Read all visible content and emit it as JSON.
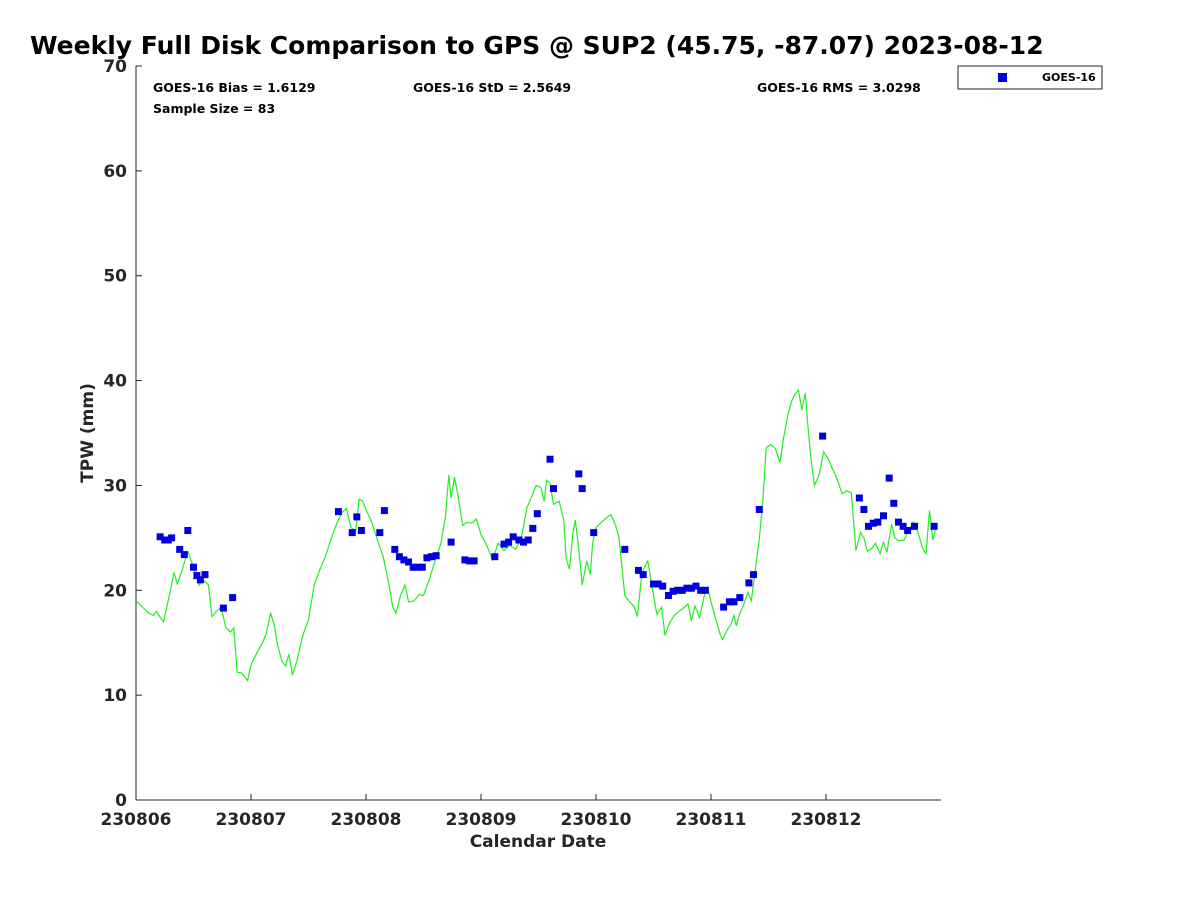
{
  "chart_data": {
    "type": "scatter",
    "title": "Weekly Full Disk Comparison to GPS @ SUP2 (45.75, -87.07) 2023-08-12",
    "xlabel": "Calendar Date",
    "ylabel": "TPW (mm)",
    "xlim": [
      230806,
      230813
    ],
    "ylim": [
      0,
      70
    ],
    "x_ticks": [
      "230806",
      "230807",
      "230808",
      "230809",
      "230810",
      "230811",
      "230812"
    ],
    "y_ticks": [
      "0",
      "10",
      "20",
      "30",
      "40",
      "50",
      "60",
      "70"
    ],
    "grid": false,
    "legend_position": "top-right outside plot",
    "stats": {
      "bias": "GOES-16 Bias = 1.6129",
      "std": "GOES-16 StD = 2.5649",
      "rms": "GOES-16 RMS = 3.0298",
      "sample": "Sample Size = 83"
    },
    "series": [
      {
        "name": "GOES-16",
        "kind": "markers",
        "color": "#0000dd",
        "points": [
          [
            230806.21,
            25.1
          ],
          [
            230806.25,
            24.8
          ],
          [
            230806.28,
            24.8
          ],
          [
            230806.31,
            25.0
          ],
          [
            230806.38,
            23.9
          ],
          [
            230806.42,
            23.4
          ],
          [
            230806.45,
            25.7
          ],
          [
            230806.5,
            22.2
          ],
          [
            230806.53,
            21.4
          ],
          [
            230806.56,
            21.0
          ],
          [
            230806.6,
            21.5
          ],
          [
            230806.76,
            18.3
          ],
          [
            230806.84,
            19.3
          ],
          [
            230807.76,
            27.5
          ],
          [
            230807.88,
            25.5
          ],
          [
            230807.92,
            27.0
          ],
          [
            230807.96,
            25.7
          ],
          [
            230808.12,
            25.5
          ],
          [
            230808.16,
            27.6
          ],
          [
            230808.25,
            23.9
          ],
          [
            230808.29,
            23.2
          ],
          [
            230808.33,
            22.9
          ],
          [
            230808.37,
            22.7
          ],
          [
            230808.41,
            22.2
          ],
          [
            230808.45,
            22.2
          ],
          [
            230808.49,
            22.2
          ],
          [
            230808.53,
            23.1
          ],
          [
            230808.57,
            23.2
          ],
          [
            230808.61,
            23.3
          ],
          [
            230808.74,
            24.6
          ],
          [
            230808.86,
            22.9
          ],
          [
            230808.9,
            22.8
          ],
          [
            230808.94,
            22.8
          ],
          [
            230809.12,
            23.2
          ],
          [
            230809.2,
            24.4
          ],
          [
            230809.24,
            24.6
          ],
          [
            230809.28,
            25.1
          ],
          [
            230809.33,
            24.8
          ],
          [
            230809.37,
            24.6
          ],
          [
            230809.41,
            24.8
          ],
          [
            230809.45,
            25.9
          ],
          [
            230809.49,
            27.3
          ],
          [
            230809.6,
            32.5
          ],
          [
            230809.63,
            29.7
          ],
          [
            230809.85,
            31.1
          ],
          [
            230809.88,
            29.7
          ],
          [
            230809.98,
            25.5
          ],
          [
            230810.25,
            23.9
          ],
          [
            230810.37,
            21.9
          ],
          [
            230810.41,
            21.5
          ],
          [
            230810.5,
            20.6
          ],
          [
            230810.54,
            20.6
          ],
          [
            230810.58,
            20.4
          ],
          [
            230810.63,
            19.5
          ],
          [
            230810.67,
            19.9
          ],
          [
            230810.71,
            20.0
          ],
          [
            230810.75,
            20.0
          ],
          [
            230810.79,
            20.2
          ],
          [
            230810.83,
            20.2
          ],
          [
            230810.87,
            20.4
          ],
          [
            230810.91,
            20.0
          ],
          [
            230810.95,
            20.0
          ],
          [
            230811.11,
            18.4
          ],
          [
            230811.16,
            18.9
          ],
          [
            230811.2,
            18.9
          ],
          [
            230811.25,
            19.3
          ],
          [
            230811.33,
            20.7
          ],
          [
            230811.37,
            21.5
          ],
          [
            230811.42,
            27.7
          ],
          [
            230811.97,
            34.7
          ],
          [
            230812.29,
            28.8
          ],
          [
            230812.33,
            27.7
          ],
          [
            230812.37,
            26.1
          ],
          [
            230812.41,
            26.4
          ],
          [
            230812.45,
            26.5
          ],
          [
            230812.5,
            27.1
          ],
          [
            230812.55,
            30.7
          ],
          [
            230812.59,
            28.3
          ],
          [
            230812.63,
            26.5
          ],
          [
            230812.67,
            26.1
          ],
          [
            230812.71,
            25.7
          ],
          [
            230812.77,
            26.1
          ],
          [
            230812.94,
            26.1
          ]
        ]
      },
      {
        "kind": "line",
        "color": "#22ee22",
        "points": [
          [
            230806.0,
            19.0
          ],
          [
            230806.05,
            18.5
          ],
          [
            230806.1,
            17.9
          ],
          [
            230806.15,
            17.6
          ],
          [
            230806.18,
            18.0
          ],
          [
            230806.2,
            17.6
          ],
          [
            230806.24,
            17.0
          ],
          [
            230806.27,
            18.5
          ],
          [
            230806.31,
            20.5
          ],
          [
            230806.33,
            21.7
          ],
          [
            230806.36,
            20.6
          ],
          [
            230806.4,
            21.9
          ],
          [
            230806.45,
            23.7
          ],
          [
            230806.5,
            22.2
          ],
          [
            230806.55,
            20.5
          ],
          [
            230806.58,
            21.0
          ],
          [
            230806.63,
            20.5
          ],
          [
            230806.66,
            17.5
          ],
          [
            230806.7,
            18.0
          ],
          [
            230806.74,
            18.4
          ],
          [
            230806.78,
            16.5
          ],
          [
            230806.82,
            16.0
          ],
          [
            230806.85,
            16.4
          ],
          [
            230806.88,
            12.2
          ],
          [
            230806.92,
            12.1
          ],
          [
            230806.97,
            11.4
          ],
          [
            230807.0,
            12.9
          ],
          [
            230807.05,
            14.0
          ],
          [
            230807.1,
            15.0
          ],
          [
            230807.13,
            15.8
          ],
          [
            230807.17,
            17.8
          ],
          [
            230807.2,
            16.8
          ],
          [
            230807.23,
            14.8
          ],
          [
            230807.27,
            13.2
          ],
          [
            230807.3,
            12.8
          ],
          [
            230807.33,
            13.9
          ],
          [
            230807.36,
            11.9
          ],
          [
            230807.4,
            13.3
          ],
          [
            230807.45,
            15.7
          ],
          [
            230807.5,
            17.2
          ],
          [
            230807.55,
            20.5
          ],
          [
            230807.6,
            22.0
          ],
          [
            230807.65,
            23.3
          ],
          [
            230807.7,
            25.0
          ],
          [
            230807.75,
            26.5
          ],
          [
            230807.79,
            27.4
          ],
          [
            230807.83,
            27.8
          ],
          [
            230807.87,
            26.0
          ],
          [
            230807.91,
            25.6
          ],
          [
            230807.94,
            28.7
          ],
          [
            230807.97,
            28.5
          ],
          [
            230808.0,
            27.7
          ],
          [
            230808.05,
            26.5
          ],
          [
            230808.1,
            24.8
          ],
          [
            230808.15,
            23.2
          ],
          [
            230808.2,
            20.5
          ],
          [
            230808.23,
            18.5
          ],
          [
            230808.26,
            17.8
          ],
          [
            230808.3,
            19.5
          ],
          [
            230808.34,
            20.5
          ],
          [
            230808.37,
            18.9
          ],
          [
            230808.42,
            19.0
          ],
          [
            230808.46,
            19.6
          ],
          [
            230808.5,
            19.5
          ],
          [
            230808.55,
            21.0
          ],
          [
            230808.6,
            22.8
          ],
          [
            230808.65,
            24.4
          ],
          [
            230808.69,
            27.0
          ],
          [
            230808.72,
            31.0
          ],
          [
            230808.74,
            28.8
          ],
          [
            230808.77,
            30.8
          ],
          [
            230808.8,
            29.0
          ],
          [
            230808.84,
            26.2
          ],
          [
            230808.88,
            26.5
          ],
          [
            230808.92,
            26.4
          ],
          [
            230808.96,
            26.8
          ],
          [
            230809.0,
            25.3
          ],
          [
            230809.05,
            24.3
          ],
          [
            230809.1,
            22.9
          ],
          [
            230809.15,
            24.5
          ],
          [
            230809.2,
            23.8
          ],
          [
            230809.25,
            24.3
          ],
          [
            230809.3,
            23.9
          ],
          [
            230809.35,
            25.0
          ],
          [
            230809.4,
            27.9
          ],
          [
            230809.44,
            28.9
          ],
          [
            230809.48,
            30.0
          ],
          [
            230809.52,
            29.8
          ],
          [
            230809.55,
            28.5
          ],
          [
            230809.57,
            30.5
          ],
          [
            230809.6,
            30.2
          ],
          [
            230809.63,
            28.2
          ],
          [
            230809.68,
            28.5
          ],
          [
            230809.72,
            26.7
          ],
          [
            230809.74,
            23.0
          ],
          [
            230809.77,
            22.0
          ],
          [
            230809.8,
            25.5
          ],
          [
            230809.82,
            26.7
          ],
          [
            230809.85,
            23.9
          ],
          [
            230809.88,
            20.5
          ],
          [
            230809.92,
            22.8
          ],
          [
            230809.95,
            21.5
          ],
          [
            230809.97,
            24.5
          ],
          [
            230810.0,
            26.0
          ],
          [
            230810.05,
            26.5
          ],
          [
            230810.1,
            27.0
          ],
          [
            230810.13,
            27.2
          ],
          [
            230810.17,
            26.2
          ],
          [
            230810.2,
            25.0
          ],
          [
            230810.25,
            19.5
          ],
          [
            230810.3,
            18.8
          ],
          [
            230810.33,
            18.5
          ],
          [
            230810.36,
            17.5
          ],
          [
            230810.4,
            21.7
          ],
          [
            230810.45,
            22.8
          ],
          [
            230810.5,
            19.5
          ],
          [
            230810.53,
            17.7
          ],
          [
            230810.57,
            18.4
          ],
          [
            230810.6,
            15.7
          ],
          [
            230810.64,
            16.9
          ],
          [
            230810.68,
            17.6
          ],
          [
            230810.72,
            18.0
          ],
          [
            230810.76,
            18.3
          ],
          [
            230810.8,
            18.7
          ],
          [
            230810.83,
            17.1
          ],
          [
            230810.86,
            18.5
          ],
          [
            230810.9,
            17.4
          ],
          [
            230810.94,
            19.4
          ],
          [
            230810.97,
            20.3
          ],
          [
            230811.0,
            18.9
          ],
          [
            230811.04,
            17.3
          ],
          [
            230811.08,
            15.8
          ],
          [
            230811.1,
            15.3
          ],
          [
            230811.14,
            16.2
          ],
          [
            230811.17,
            16.7
          ],
          [
            230811.2,
            17.6
          ],
          [
            230811.22,
            16.6
          ],
          [
            230811.25,
            17.8
          ],
          [
            230811.28,
            18.5
          ],
          [
            230811.32,
            19.8
          ],
          [
            230811.35,
            19.0
          ],
          [
            230811.38,
            21.5
          ],
          [
            230811.42,
            24.9
          ],
          [
            230811.45,
            28.5
          ],
          [
            230811.48,
            33.6
          ],
          [
            230811.52,
            33.9
          ],
          [
            230811.56,
            33.5
          ],
          [
            230811.6,
            32.2
          ],
          [
            230811.63,
            34.5
          ],
          [
            230811.67,
            36.8
          ],
          [
            230811.7,
            38.0
          ],
          [
            230811.73,
            38.7
          ],
          [
            230811.76,
            39.1
          ],
          [
            230811.79,
            37.2
          ],
          [
            230811.82,
            38.8
          ],
          [
            230811.84,
            36.0
          ],
          [
            230811.87,
            32.5
          ],
          [
            230811.9,
            30.0
          ],
          [
            230811.94,
            31.0
          ],
          [
            230811.98,
            33.2
          ],
          [
            230812.02,
            32.5
          ],
          [
            230812.06,
            31.5
          ],
          [
            230812.1,
            30.5
          ],
          [
            230812.14,
            29.2
          ],
          [
            230812.18,
            29.5
          ],
          [
            230812.22,
            29.3
          ],
          [
            230812.26,
            23.8
          ],
          [
            230812.3,
            25.5
          ],
          [
            230812.33,
            25.0
          ],
          [
            230812.36,
            23.7
          ],
          [
            230812.4,
            24.0
          ],
          [
            230812.43,
            24.5
          ],
          [
            230812.47,
            23.5
          ],
          [
            230812.5,
            24.6
          ],
          [
            230812.53,
            23.6
          ],
          [
            230812.57,
            26.3
          ],
          [
            230812.6,
            25.0
          ],
          [
            230812.63,
            24.7
          ],
          [
            230812.68,
            24.8
          ],
          [
            230812.72,
            25.8
          ],
          [
            230812.76,
            26.5
          ],
          [
            230812.8,
            25.5
          ],
          [
            230812.84,
            24.0
          ],
          [
            230812.87,
            23.5
          ],
          [
            230812.9,
            27.6
          ],
          [
            230812.93,
            24.8
          ],
          [
            230812.95,
            25.8
          ]
        ]
      }
    ]
  },
  "colors": {
    "markers": "#0000dd",
    "line": "#22ee22",
    "axes": "#262626"
  }
}
